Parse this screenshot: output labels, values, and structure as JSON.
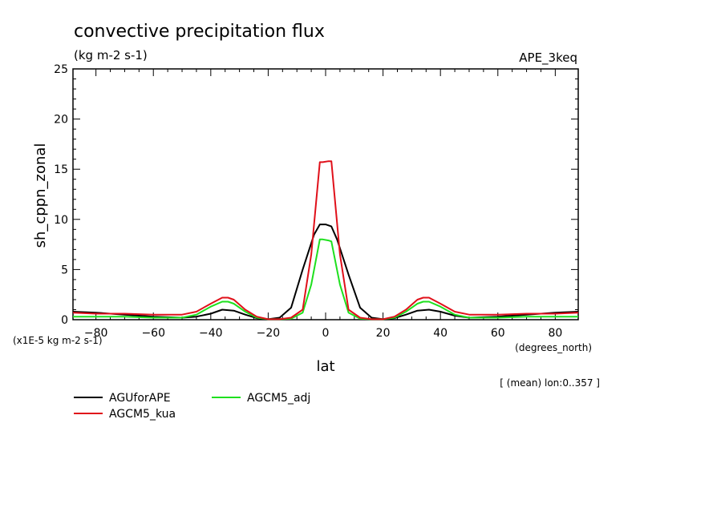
{
  "chart_data": {
    "type": "line",
    "title": "convective precipitation flux",
    "subtitle": "(kg m-2 s-1)",
    "run_label": "APE_3keq",
    "xlabel": "lat",
    "xunits": "(degrees_north)",
    "ylabel": "sh_cppn_zonal",
    "yunits": "(x1E-5 kg m-2 s-1)",
    "footnote": "[ (mean) lon:0..357 ]",
    "xlim": [
      -88,
      88
    ],
    "ylim": [
      0,
      25
    ],
    "x_ticks": [
      -80,
      -60,
      -40,
      -20,
      0,
      20,
      40,
      60,
      80
    ],
    "y_ticks": [
      0,
      5,
      10,
      15,
      20,
      25
    ],
    "grid": false,
    "legend_position": "bottom-left",
    "series": [
      {
        "name": "AGUforAPE",
        "color": "#000000",
        "x": [
          -88,
          -80,
          -70,
          -60,
          -50,
          -45,
          -40,
          -36,
          -32,
          -28,
          -24,
          -20,
          -16,
          -12,
          -8,
          -4,
          -2,
          0,
          2,
          4,
          -0.5,
          8,
          12,
          16,
          20,
          24,
          28,
          32,
          36,
          40,
          45,
          50,
          60,
          70,
          80,
          88
        ],
        "y": [
          0.8,
          0.7,
          0.5,
          0.3,
          0.2,
          0.3,
          0.6,
          1.0,
          0.9,
          0.5,
          0.15,
          0.05,
          0.2,
          1.2,
          5.0,
          8.5,
          9.5,
          9.5,
          9.3,
          8.0,
          9.5,
          4.5,
          1.2,
          0.2,
          0.05,
          0.15,
          0.5,
          0.9,
          1.0,
          0.8,
          0.4,
          0.2,
          0.3,
          0.5,
          0.7,
          0.8
        ]
      },
      {
        "name": "AGCM5_kua",
        "color": "#e0101a",
        "x": [
          -88,
          -80,
          -70,
          -60,
          -50,
          -45,
          -40,
          -36,
          -34,
          -32,
          -28,
          -24,
          -20,
          -16,
          -12,
          -8,
          -5,
          -2,
          -1,
          1,
          2,
          5,
          8,
          12,
          16,
          20,
          24,
          28,
          32,
          34,
          36,
          40,
          45,
          50,
          60,
          70,
          80,
          88
        ],
        "y": [
          0.7,
          0.6,
          0.6,
          0.5,
          0.5,
          0.8,
          1.6,
          2.2,
          2.2,
          2.0,
          1.0,
          0.3,
          0.05,
          0.05,
          0.2,
          1.0,
          6.5,
          15.7,
          15.7,
          15.8,
          15.8,
          6.5,
          1.0,
          0.2,
          0.05,
          0.05,
          0.3,
          1.0,
          2.0,
          2.2,
          2.2,
          1.6,
          0.8,
          0.5,
          0.5,
          0.6,
          0.6,
          0.7
        ]
      },
      {
        "name": "AGCM5_adj",
        "color": "#1ee01e",
        "x": [
          -88,
          -80,
          -70,
          -60,
          -50,
          -45,
          -40,
          -36,
          -34,
          -32,
          -28,
          -24,
          -20,
          -16,
          -12,
          -8,
          -5,
          -2,
          -1,
          1,
          2,
          5,
          8,
          12,
          16,
          20,
          24,
          28,
          32,
          34,
          36,
          40,
          45,
          50,
          60,
          70,
          80,
          88
        ],
        "y": [
          0.3,
          0.3,
          0.3,
          0.2,
          0.2,
          0.5,
          1.3,
          1.8,
          1.8,
          1.6,
          0.8,
          0.2,
          0.05,
          0.05,
          0.1,
          0.7,
          3.5,
          8.0,
          8.0,
          7.9,
          7.8,
          3.5,
          0.7,
          0.1,
          0.05,
          0.05,
          0.2,
          0.8,
          1.6,
          1.8,
          1.8,
          1.3,
          0.5,
          0.2,
          0.2,
          0.3,
          0.3,
          0.3
        ]
      }
    ]
  }
}
